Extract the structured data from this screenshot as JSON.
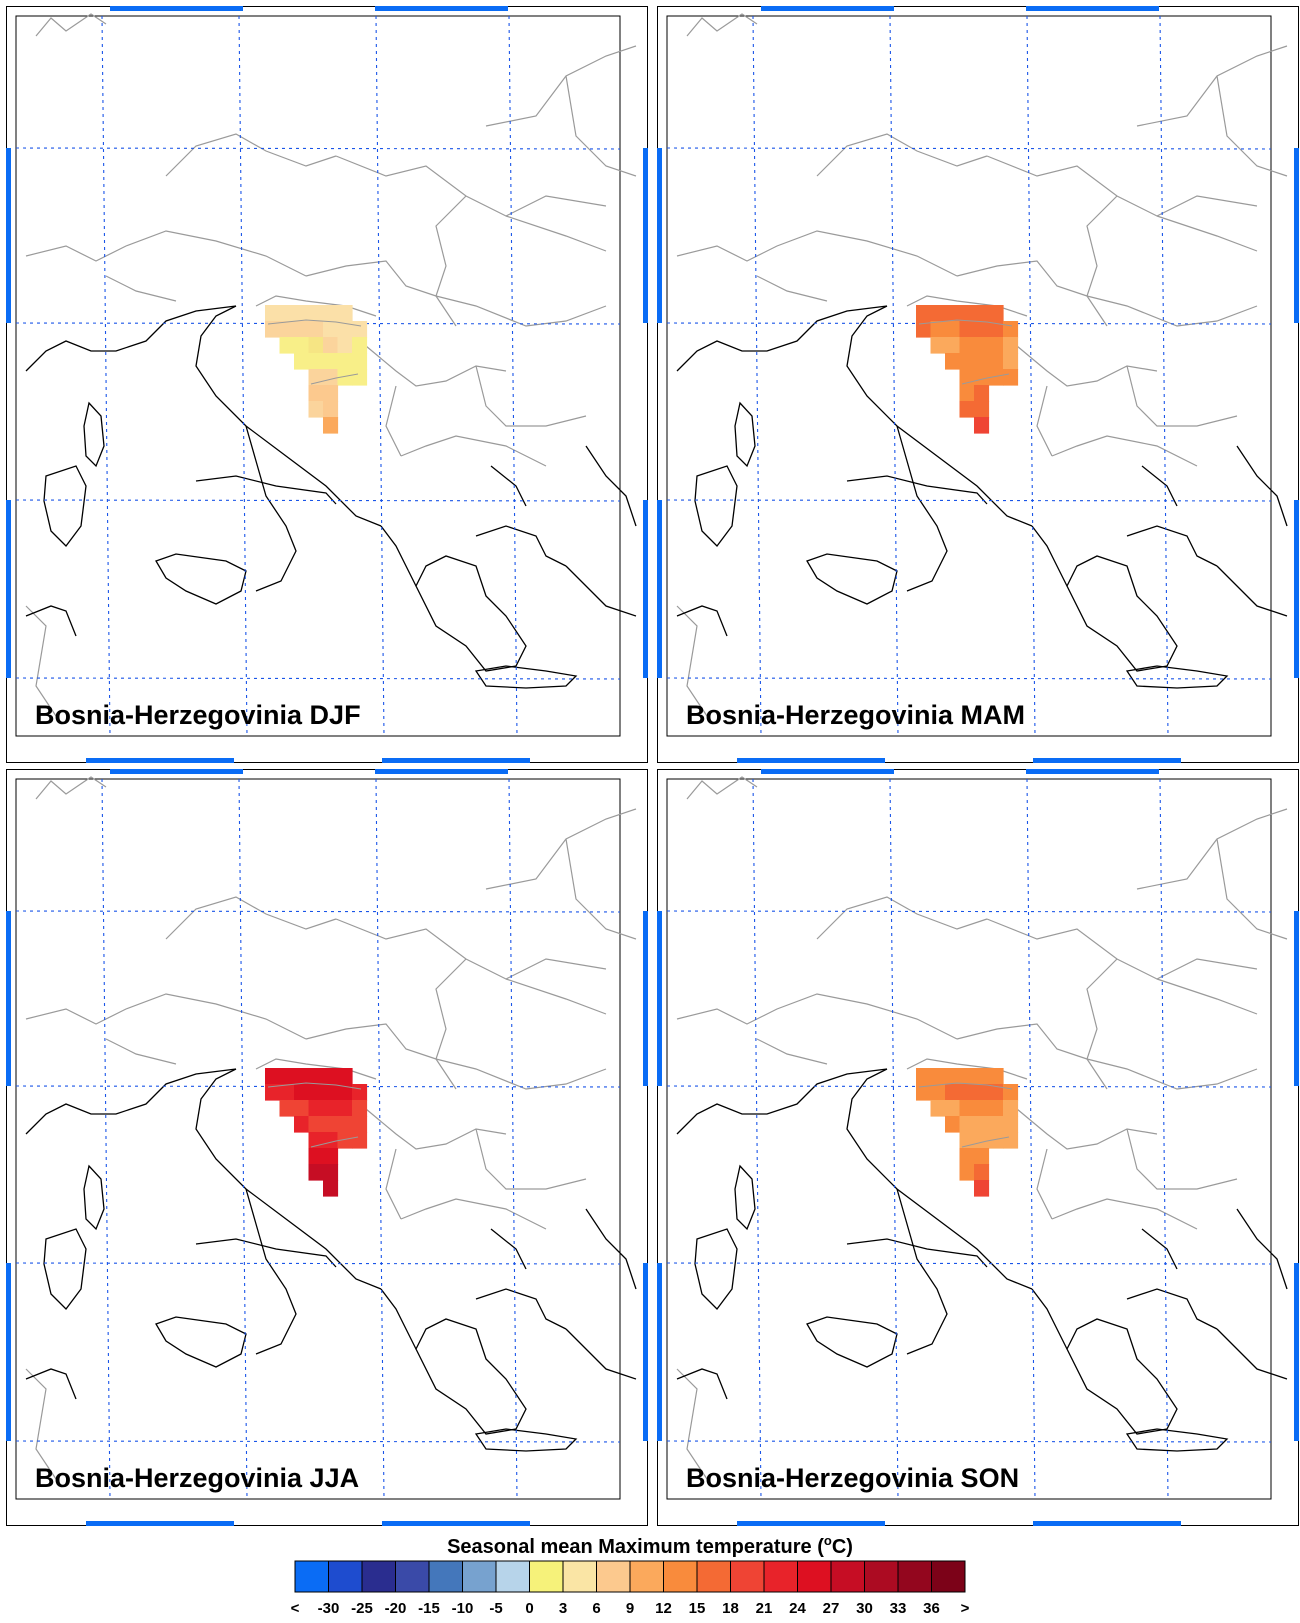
{
  "figure": {
    "colorbar": {
      "title": "Seasonal mean Maximum temperature (",
      "title_sup": "o",
      "title_unit": "C)",
      "colors": [
        "#0a6cf5",
        "#1e4ccf",
        "#2a2d8f",
        "#3a4aa8",
        "#4477bb",
        "#77a2cf",
        "#b7d4ea",
        "#f6f27a",
        "#fae5a5",
        "#fcc98e",
        "#fba95c",
        "#f98b3c",
        "#f46a34",
        "#ef4434",
        "#e8232a",
        "#dd1021",
        "#c60d24",
        "#ac0b22",
        "#93061e",
        "#7c0218"
      ],
      "tick_labels": [
        "<",
        "-30",
        "-25",
        "-20",
        "-15",
        "-10",
        "-5",
        "0",
        "3",
        "6",
        "9",
        "12",
        "15",
        "18",
        "21",
        "24",
        "27",
        "30",
        "33",
        "36",
        ">"
      ]
    },
    "panels": [
      {
        "label": "Bosnia-Herzegovinia DJF",
        "season": "DJF",
        "cells": [
          [
            "#fbe0a8",
            "#fbe0a8",
            "#fbe0a8",
            "#fbe0a8",
            "#fbe0a8",
            "#fbe0a8",
            null
          ],
          [
            "#fbd49c",
            "#fbd49c",
            "#fbd49c",
            "#fbd49c",
            "#fbe0a8",
            "#fbe0a8",
            "#fbe0a8"
          ],
          [
            null,
            "#f8ef88",
            "#f8ef88",
            "#f6e584",
            "#fbd49c",
            "#fbe0a8",
            "#f8ef88"
          ],
          [
            null,
            null,
            "#f8ef88",
            "#f8ef88",
            "#f8ef88",
            "#f8ef88",
            "#f8ef88"
          ],
          [
            null,
            null,
            null,
            "#fbd49c",
            "#fbd49c",
            "#f8ef88",
            "#f8ef88"
          ],
          [
            null,
            null,
            null,
            "#fcc98e",
            "#fcc98e",
            null,
            null
          ],
          [
            null,
            null,
            null,
            "#fbd49c",
            "#fcc98e",
            null,
            null
          ],
          [
            null,
            null,
            null,
            null,
            "#fba95c",
            null,
            null
          ]
        ]
      },
      {
        "label": "Bosnia-Herzegovinia MAM",
        "season": "MAM",
        "cells": [
          [
            "#f46a34",
            "#f46a34",
            "#f46a34",
            "#f46a34",
            "#f46a34",
            "#f46a34",
            null
          ],
          [
            "#f46a34",
            "#f98b3c",
            "#f98b3c",
            "#f46a34",
            "#f46a34",
            "#f46a34",
            "#f98b3c"
          ],
          [
            null,
            "#fba95c",
            "#fba95c",
            "#f98b3c",
            "#f98b3c",
            "#f98b3c",
            "#fba95c"
          ],
          [
            null,
            null,
            "#f98b3c",
            "#f98b3c",
            "#f98b3c",
            "#f98b3c",
            "#fba95c"
          ],
          [
            null,
            null,
            null,
            "#f98b3c",
            "#f98b3c",
            "#f98b3c",
            "#f98b3c"
          ],
          [
            null,
            null,
            null,
            "#f98b3c",
            "#f46a34",
            null,
            null
          ],
          [
            null,
            null,
            null,
            "#f46a34",
            "#f46a34",
            null,
            null
          ],
          [
            null,
            null,
            null,
            null,
            "#ef4434",
            null,
            null
          ]
        ]
      },
      {
        "label": "Bosnia-Herzegovinia JJA",
        "season": "JJA",
        "cells": [
          [
            "#dd1021",
            "#dd1021",
            "#dd1021",
            "#dd1021",
            "#dd1021",
            "#dd1021",
            null
          ],
          [
            "#e8232a",
            "#e8232a",
            "#dd1021",
            "#dd1021",
            "#dd1021",
            "#dd1021",
            "#e8232a"
          ],
          [
            null,
            "#ef4434",
            "#ef4434",
            "#e8232a",
            "#e8232a",
            "#e8232a",
            "#ef4434"
          ],
          [
            null,
            null,
            "#e8232a",
            "#ef4434",
            "#ef4434",
            "#ef4434",
            "#ef4434"
          ],
          [
            null,
            null,
            null,
            "#e8232a",
            "#e8232a",
            "#ef4434",
            "#ef4434"
          ],
          [
            null,
            null,
            null,
            "#dd1021",
            "#dd1021",
            null,
            null
          ],
          [
            null,
            null,
            null,
            "#c60d24",
            "#c60d24",
            null,
            null
          ],
          [
            null,
            null,
            null,
            null,
            "#c60d24",
            null,
            null
          ]
        ]
      },
      {
        "label": "Bosnia-Herzegovinia SON",
        "season": "SON",
        "cells": [
          [
            "#f98b3c",
            "#f98b3c",
            "#f98b3c",
            "#f98b3c",
            "#f98b3c",
            "#f98b3c",
            null
          ],
          [
            "#f98b3c",
            "#f98b3c",
            "#f46a34",
            "#f46a34",
            "#f46a34",
            "#f46a34",
            "#f98b3c"
          ],
          [
            null,
            "#fba95c",
            "#fba95c",
            "#f98b3c",
            "#f98b3c",
            "#f98b3c",
            "#fba95c"
          ],
          [
            null,
            null,
            "#f98b3c",
            "#fba95c",
            "#fba95c",
            "#fba95c",
            "#fba95c"
          ],
          [
            null,
            null,
            null,
            "#fba95c",
            "#fba95c",
            "#fba95c",
            "#fba95c"
          ],
          [
            null,
            null,
            null,
            "#f98b3c",
            "#f98b3c",
            null,
            null
          ],
          [
            null,
            null,
            null,
            "#f98b3c",
            "#f46a34",
            null,
            null
          ],
          [
            null,
            null,
            null,
            null,
            "#ef4434",
            null,
            null
          ]
        ]
      }
    ]
  }
}
